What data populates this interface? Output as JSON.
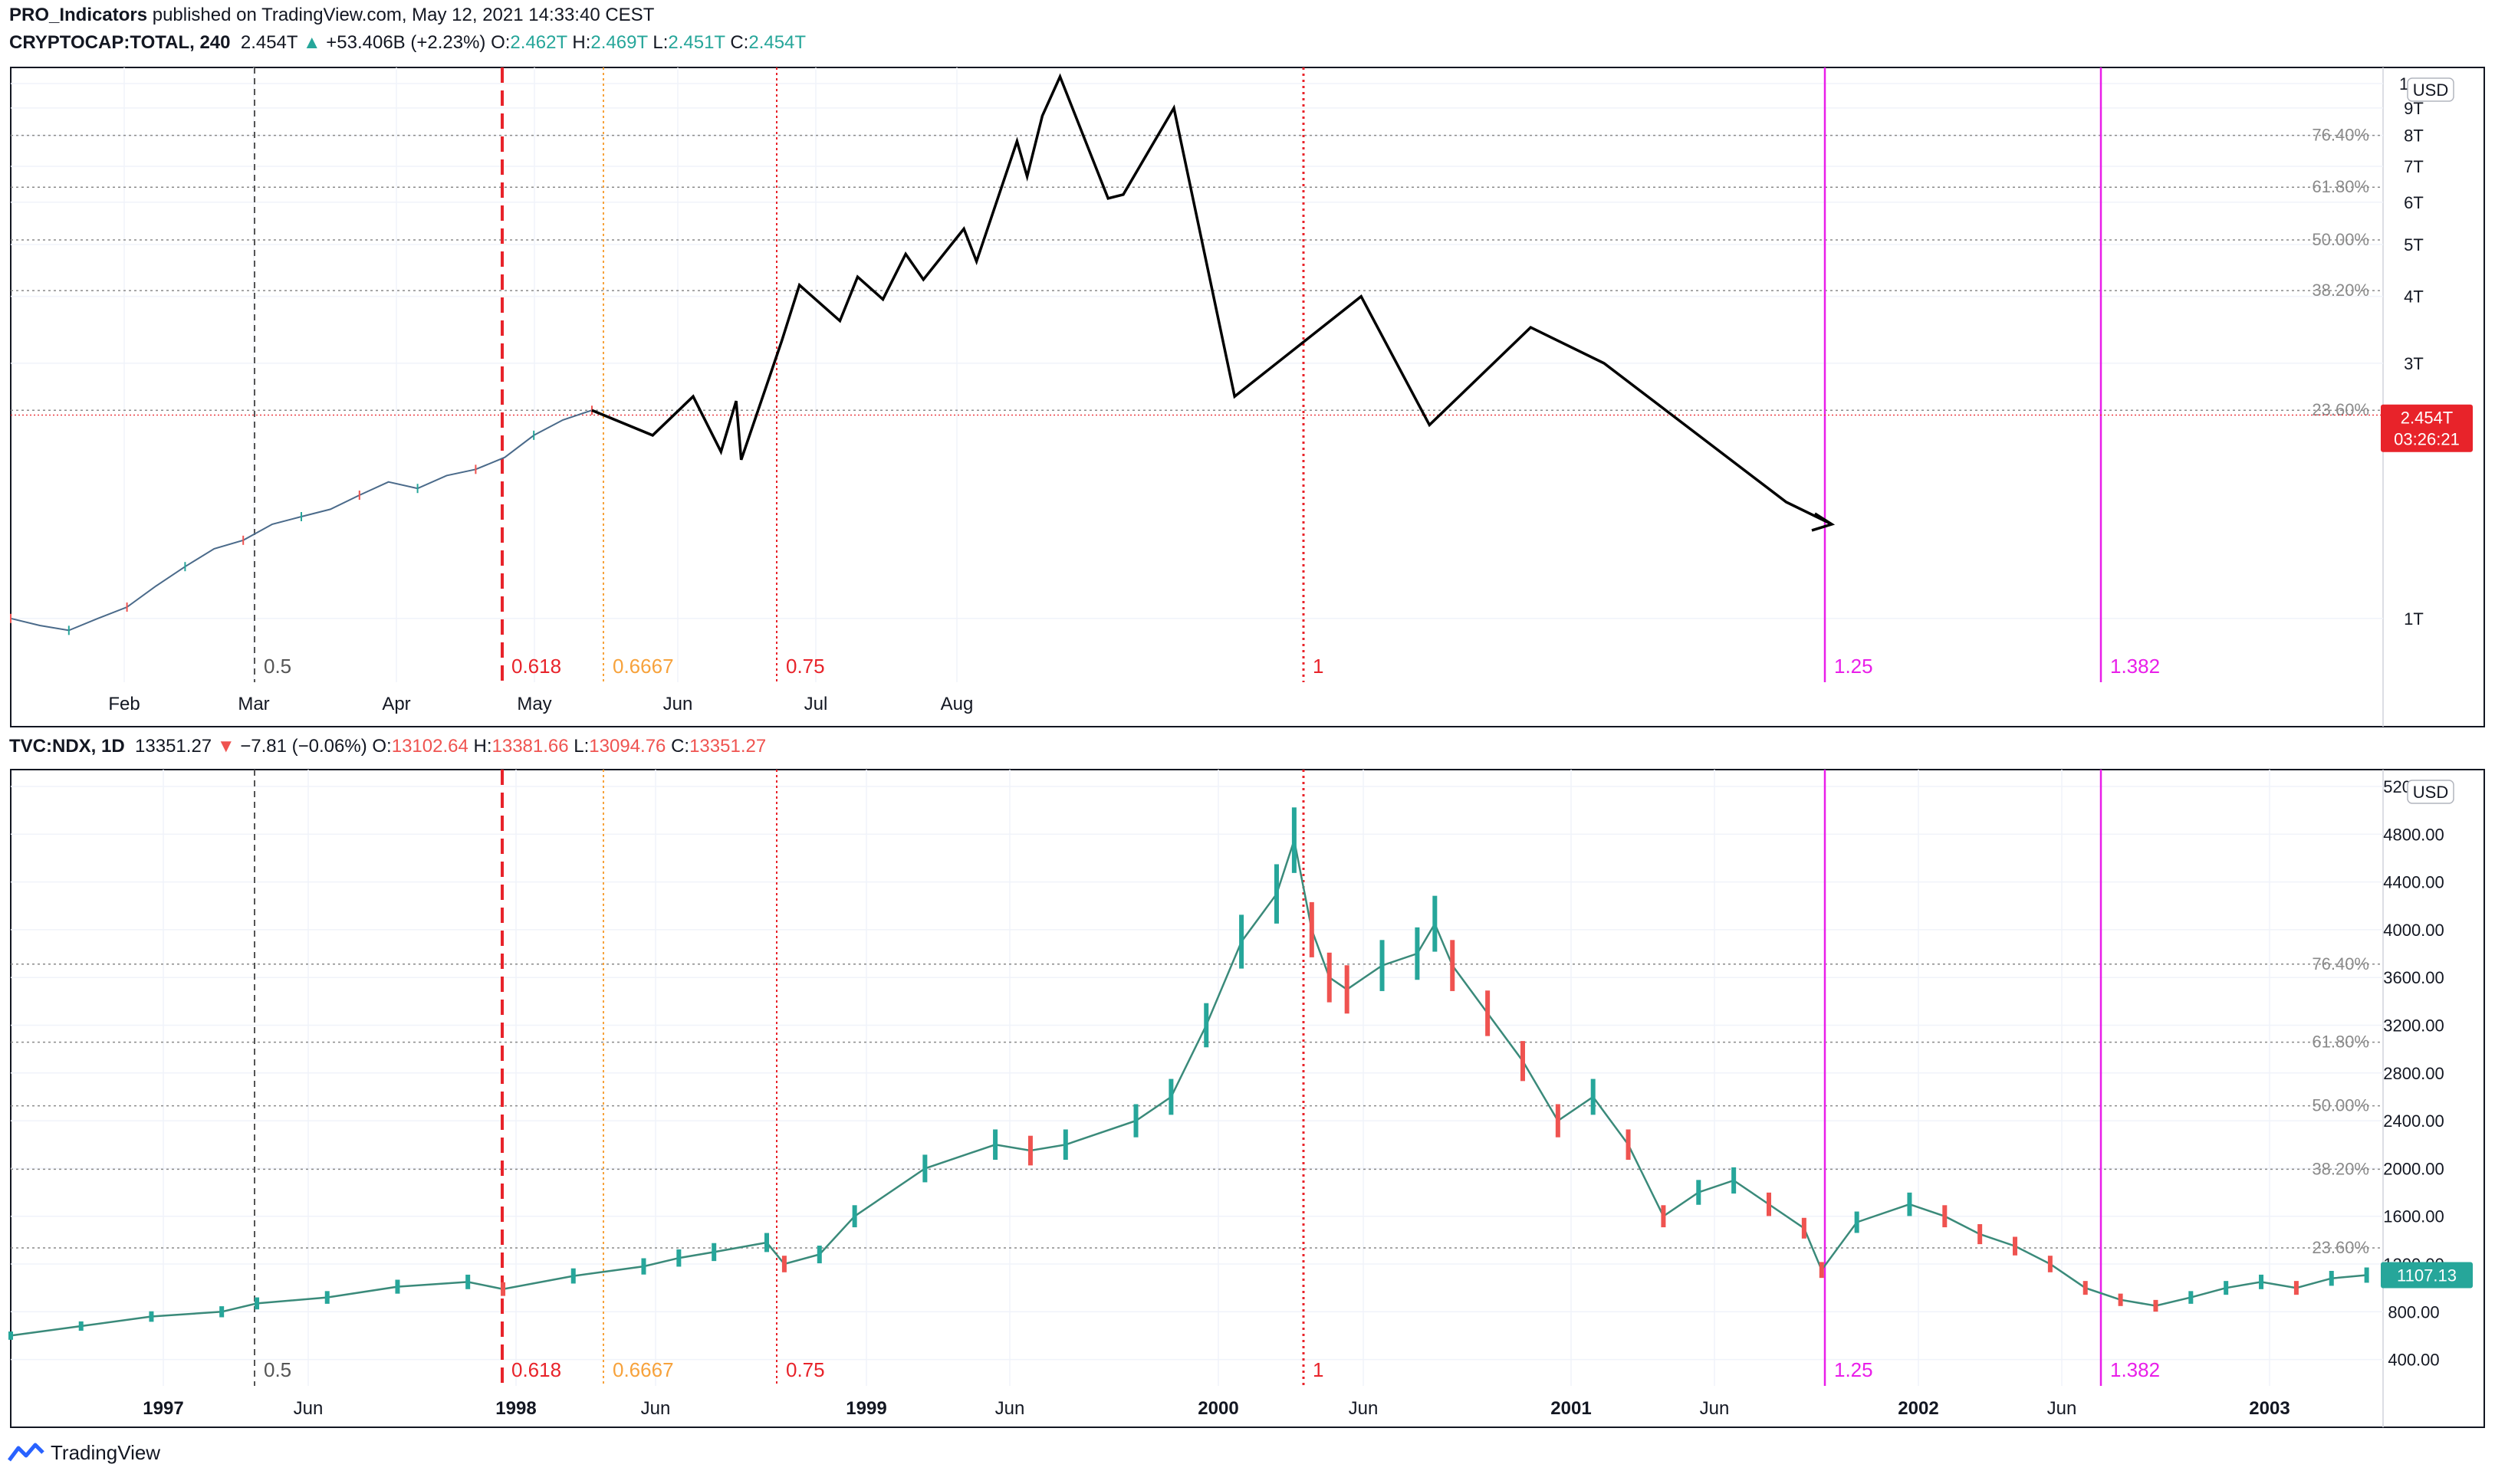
{
  "header": {
    "author": "PRO_Indicators",
    "rest": " published on TradingView.com, May 12, 2021 14:33:40 CEST"
  },
  "pane1": {
    "symbol": "CRYPTOCAP:TOTAL, 240",
    "last": "2.454T",
    "change": "+53.406B (+2.23%)",
    "o_label": "O:",
    "o": "2.462T",
    "h_label": "H:",
    "h": "2.469T",
    "l_label": "L:",
    "l": "2.451T",
    "c_label": "C:",
    "c": "2.454T",
    "currency": "USD",
    "price_tag": "2.454T",
    "countdown": "03:26:21"
  },
  "pane2": {
    "symbol": "TVC:NDX, 1D",
    "last": "13351.27",
    "change": "−7.81 (−0.06%)",
    "o_label": "O:",
    "o": "13102.64",
    "h_label": "H:",
    "h": "13381.66",
    "l_label": "L:",
    "l": "13094.76",
    "c_label": "C:",
    "c": "13351.27",
    "currency": "USD",
    "price_tag": "1107.13"
  },
  "brand": {
    "name": "TradingView"
  },
  "colors": {
    "up": "#26a69a",
    "down": "#ef5350",
    "magenta": "#e91ee9",
    "orange": "#f7a23b",
    "red": "#e8232a",
    "gray": "#555555"
  },
  "chart_data": [
    {
      "type": "line",
      "title": "CRYPTOCAP:TOTAL, 240",
      "y_scale": "log",
      "y_unit": "USD",
      "x_tick_labels": [
        "Feb",
        "Mar",
        "Apr",
        "May",
        "Jun",
        "Jul",
        "Aug"
      ],
      "y_tick_labels": [
        "10T",
        "9T",
        "8T",
        "7T",
        "6T",
        "5T",
        "4T",
        "3T",
        "1T"
      ],
      "fib_levels": [
        {
          "label": "23.60%",
          "value": 2.45
        },
        {
          "label": "38.20%",
          "value": 4.1
        },
        {
          "label": "50.00%",
          "value": 5.1
        },
        {
          "label": "61.80%",
          "value": 6.4
        },
        {
          "label": "76.40%",
          "value": 8.0
        }
      ],
      "time_fib_lines": [
        {
          "label": "0.5",
          "color": "gray",
          "style": "dashed"
        },
        {
          "label": "0.618",
          "color": "red",
          "style": "dashed-bold"
        },
        {
          "label": "0.6667",
          "color": "orange",
          "style": "dotted"
        },
        {
          "label": "0.75",
          "color": "red",
          "style": "dotted"
        },
        {
          "label": "1",
          "color": "red",
          "style": "dotted-bold"
        },
        {
          "label": "1.25",
          "color": "magenta",
          "style": "solid"
        },
        {
          "label": "1.382",
          "color": "magenta",
          "style": "solid"
        }
      ],
      "price_series": {
        "name": "",
        "t": [
          0,
          0.05,
          0.1,
          0.15,
          0.2,
          0.25,
          0.3,
          0.35,
          0.4,
          0.45,
          0.5,
          0.55,
          0.6,
          0.65,
          0.7,
          0.75,
          0.8,
          0.85,
          0.9,
          0.95,
          1.0
        ],
        "values": [
          1.0,
          0.97,
          0.95,
          1.0,
          1.05,
          1.15,
          1.25,
          1.35,
          1.4,
          1.5,
          1.55,
          1.6,
          1.7,
          1.8,
          1.75,
          1.85,
          1.9,
          2.0,
          2.2,
          2.35,
          2.45
        ]
      },
      "projection": {
        "name": "",
        "t": [
          0,
          2.4,
          4.0,
          5.1,
          5.7,
          5.9,
          7.5,
          8.2,
          9.8,
          10.5,
          11.5,
          12.4,
          13.1,
          14.7,
          15.2,
          16.8,
          17.2,
          17.8,
          18.5,
          20.4,
          21.0,
          23.0,
          25.4,
          30.4,
          33.1,
          37.1,
          40.0,
          47.2,
          49.0
        ],
        "values": [
          2.45,
          2.2,
          2.6,
          2.05,
          2.55,
          1.98,
          3.3,
          4.2,
          3.6,
          4.35,
          3.95,
          4.8,
          4.3,
          5.35,
          4.65,
          7.8,
          6.7,
          8.7,
          10.3,
          6.1,
          6.2,
          9.0,
          2.6,
          4.0,
          2.3,
          3.5,
          3.0,
          1.65,
          1.5
        ]
      }
    },
    {
      "type": "line",
      "title": "TVC:NDX, 1D",
      "y_unit": "USD",
      "x_tick_labels": [
        "1997",
        "Jun",
        "1998",
        "Jun",
        "1999",
        "Jun",
        "2000",
        "Jun",
        "2001",
        "Jun",
        "2002",
        "Jun",
        "2003"
      ],
      "y_tick_labels": [
        "5200.00",
        "4800.00",
        "4400.00",
        "4000.00",
        "3600.00",
        "3200.00",
        "2800.00",
        "2400.00",
        "2000.00",
        "1600.00",
        "1200.00",
        "800.00",
        "400.00"
      ],
      "fib_levels": [
        {
          "label": "23.60%",
          "value": 1335
        },
        {
          "label": "38.20%",
          "value": 1994
        },
        {
          "label": "50.00%",
          "value": 2525
        },
        {
          "label": "61.80%",
          "value": 3058
        },
        {
          "label": "76.40%",
          "value": 3712
        }
      ],
      "time_fib_lines": [
        {
          "label": "0.5",
          "color": "gray",
          "style": "dashed"
        },
        {
          "label": "0.618",
          "color": "red",
          "style": "dashed-bold"
        },
        {
          "label": "0.6667",
          "color": "orange",
          "style": "dotted"
        },
        {
          "label": "0.75",
          "color": "red",
          "style": "dotted"
        },
        {
          "label": "1",
          "color": "red",
          "style": "dotted-bold"
        },
        {
          "label": "1.25",
          "color": "magenta",
          "style": "solid"
        },
        {
          "label": "1.382",
          "color": "magenta",
          "style": "solid"
        }
      ],
      "price_series": {
        "name": "",
        "t": [
          1996.6,
          1996.8,
          1997.0,
          1997.2,
          1997.3,
          1997.5,
          1997.7,
          1997.9,
          1998.0,
          1998.2,
          1998.4,
          1998.5,
          1998.6,
          1998.75,
          1998.8,
          1998.9,
          1999.0,
          1999.2,
          1999.4,
          1999.5,
          1999.6,
          1999.8,
          1999.9,
          2000.0,
          2000.1,
          2000.2,
          2000.25,
          2000.3,
          2000.35,
          2000.4,
          2000.5,
          2000.6,
          2000.65,
          2000.7,
          2000.8,
          2000.9,
          2001.0,
          2001.1,
          2001.2,
          2001.3,
          2001.4,
          2001.5,
          2001.6,
          2001.7,
          2001.75,
          2001.85,
          2002.0,
          2002.1,
          2002.2,
          2002.3,
          2002.4,
          2002.5,
          2002.6,
          2002.7,
          2002.8,
          2002.9,
          2003.0,
          2003.1,
          2003.2,
          2003.3
        ],
        "values": [
          600,
          680,
          760,
          800,
          870,
          920,
          1010,
          1050,
          990,
          1100,
          1180,
          1250,
          1300,
          1380,
          1200,
          1280,
          1600,
          2000,
          2200,
          2150,
          2200,
          2400,
          2600,
          3200,
          3900,
          4300,
          4750,
          4000,
          3600,
          3500,
          3700,
          3800,
          4050,
          3700,
          3300,
          2900,
          2400,
          2600,
          2200,
          1600,
          1800,
          1900,
          1700,
          1500,
          1150,
          1550,
          1700,
          1600,
          1450,
          1350,
          1200,
          1000,
          900,
          850,
          920,
          1000,
          1050,
          1000,
          1080,
          1107
        ]
      }
    }
  ]
}
